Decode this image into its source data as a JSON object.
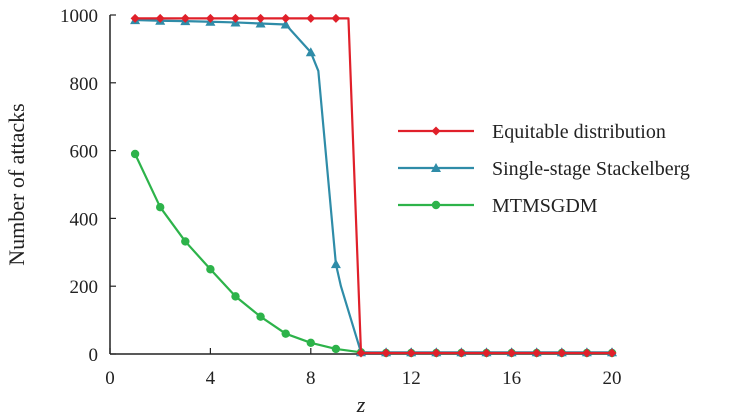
{
  "chart_data": {
    "type": "line",
    "xlabel": "z",
    "ylabel": "Number of attacks",
    "xlim": [
      0,
      20
    ],
    "ylim": [
      0,
      1000
    ],
    "x_ticks": [
      0,
      4,
      8,
      12,
      16,
      20
    ],
    "y_ticks": [
      0,
      200,
      400,
      600,
      800,
      1000
    ],
    "grid": false,
    "legend_position": "right",
    "series": [
      {
        "name": "Equitable distribution",
        "color": "#e0202a",
        "marker": "diamond",
        "points": [
          [
            1,
            990
          ],
          [
            2,
            990
          ],
          [
            3,
            990
          ],
          [
            4,
            990
          ],
          [
            5,
            990
          ],
          [
            6,
            990
          ],
          [
            7,
            990
          ],
          [
            8,
            990
          ],
          [
            9,
            990
          ],
          [
            9.5,
            990
          ],
          [
            10,
            3
          ],
          [
            11,
            3
          ],
          [
            12,
            3
          ],
          [
            13,
            3
          ],
          [
            14,
            3
          ],
          [
            15,
            3
          ],
          [
            16,
            3
          ],
          [
            17,
            3
          ],
          [
            18,
            3
          ],
          [
            19,
            3
          ],
          [
            20,
            3
          ]
        ],
        "marker_x": [
          1,
          2,
          3,
          4,
          5,
          6,
          7,
          8,
          9,
          10,
          11,
          12,
          13,
          14,
          15,
          16,
          17,
          18,
          19,
          20
        ]
      },
      {
        "name": "Single-stage Stackelberg",
        "color": "#2f8ca8",
        "marker": "triangle",
        "points": [
          [
            1,
            985
          ],
          [
            2,
            983
          ],
          [
            3,
            982
          ],
          [
            4,
            980
          ],
          [
            5,
            978
          ],
          [
            6,
            975
          ],
          [
            7,
            972
          ],
          [
            8,
            890
          ],
          [
            8.3,
            835
          ],
          [
            9,
            265
          ],
          [
            9.2,
            200
          ],
          [
            10,
            5
          ],
          [
            11,
            5
          ],
          [
            12,
            5
          ],
          [
            13,
            5
          ],
          [
            14,
            5
          ],
          [
            15,
            5
          ],
          [
            16,
            5
          ],
          [
            17,
            5
          ],
          [
            18,
            5
          ],
          [
            19,
            5
          ],
          [
            20,
            5
          ]
        ],
        "marker_x": [
          1,
          2,
          3,
          4,
          5,
          6,
          7,
          8,
          9,
          10,
          11,
          12,
          13,
          14,
          15,
          16,
          17,
          18,
          19,
          20
        ]
      },
      {
        "name": "MTMSGDM",
        "color": "#2db34a",
        "marker": "circle",
        "points": [
          [
            1,
            590
          ],
          [
            2,
            433
          ],
          [
            3,
            332
          ],
          [
            4,
            250
          ],
          [
            5,
            170
          ],
          [
            6,
            110
          ],
          [
            7,
            60
          ],
          [
            8,
            33
          ],
          [
            9,
            15
          ],
          [
            10,
            5
          ],
          [
            11,
            3
          ],
          [
            12,
            3
          ],
          [
            13,
            3
          ],
          [
            14,
            3
          ],
          [
            15,
            3
          ],
          [
            16,
            3
          ],
          [
            17,
            3
          ],
          [
            18,
            3
          ],
          [
            19,
            3
          ],
          [
            20,
            3
          ]
        ],
        "marker_x": [
          1,
          2,
          3,
          4,
          5,
          6,
          7,
          8,
          9,
          10,
          11,
          12,
          13,
          14,
          15,
          16,
          17,
          18,
          19,
          20
        ]
      }
    ]
  }
}
